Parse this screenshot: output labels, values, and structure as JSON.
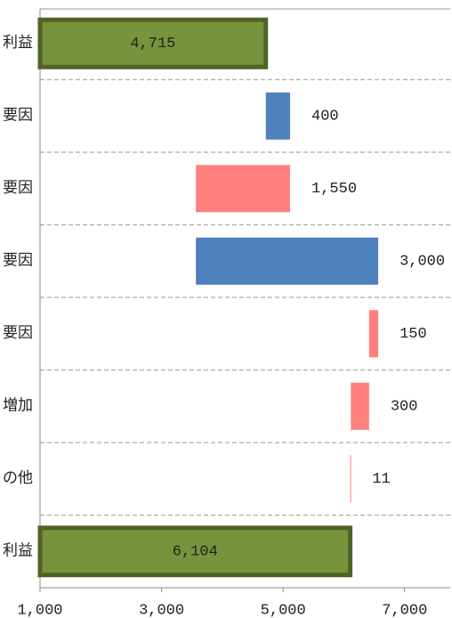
{
  "chart_data": {
    "type": "waterfall",
    "categories": [
      "利益",
      "要因",
      "要因",
      "要因",
      "要因",
      "増加",
      "の他",
      "利益"
    ],
    "values": [
      4715,
      400,
      1550,
      3000,
      150,
      300,
      11,
      6104
    ],
    "value_labels": [
      "4,715",
      "400",
      "1,550",
      "3,000",
      "150",
      "300",
      "11",
      "6,104"
    ],
    "directions": [
      "total",
      "up",
      "down",
      "up",
      "down",
      "down",
      "down",
      "total"
    ],
    "colors": {
      "total": "#77933c",
      "up": "#4f81bd",
      "down": "#ff7f7f"
    },
    "total_border": "#4f6228",
    "xlim": [
      1000,
      7750
    ],
    "xticks": [
      {
        "value": 1000,
        "label": "1,000"
      },
      {
        "value": 3000,
        "label": "3,000"
      },
      {
        "value": 5000,
        "label": "5,000"
      },
      {
        "value": 7000,
        "label": "7,000"
      }
    ],
    "grid": true
  }
}
